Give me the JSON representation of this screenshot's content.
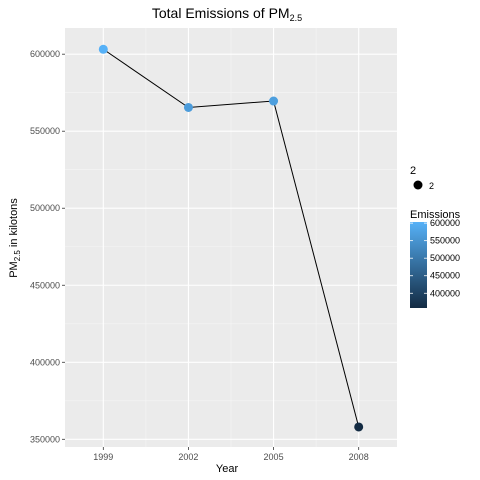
{
  "chart_data": {
    "type": "line",
    "title": {
      "main": "Total Emissions of PM",
      "sub": "2.5"
    },
    "xlabel": "Year",
    "ylabel": {
      "pre": "PM",
      "sub": "2.5",
      "post": " in kilotons"
    },
    "x": [
      1999,
      2002,
      2005,
      2008
    ],
    "y": [
      603200,
      565400,
      569600,
      358000
    ],
    "xlim": [
      1997.65,
      2009.35
    ],
    "ylim": [
      345000,
      617000
    ],
    "x_ticks": [
      1999,
      2002,
      2005,
      2008
    ],
    "y_ticks": [
      350000,
      400000,
      450000,
      500000,
      550000,
      600000
    ],
    "grid": true,
    "line_color": "#000000",
    "panel_color": "#ebebeb",
    "point_color_low": "#132b43",
    "point_color_high": "#56b1f7",
    "legend_placement": "right",
    "size_legend": {
      "title": "2",
      "label": "2"
    },
    "color_legend": {
      "title": "Emissions",
      "ticks": [
        400000,
        450000,
        500000,
        550000,
        600000
      ],
      "min": 358000,
      "max": 603200
    }
  }
}
